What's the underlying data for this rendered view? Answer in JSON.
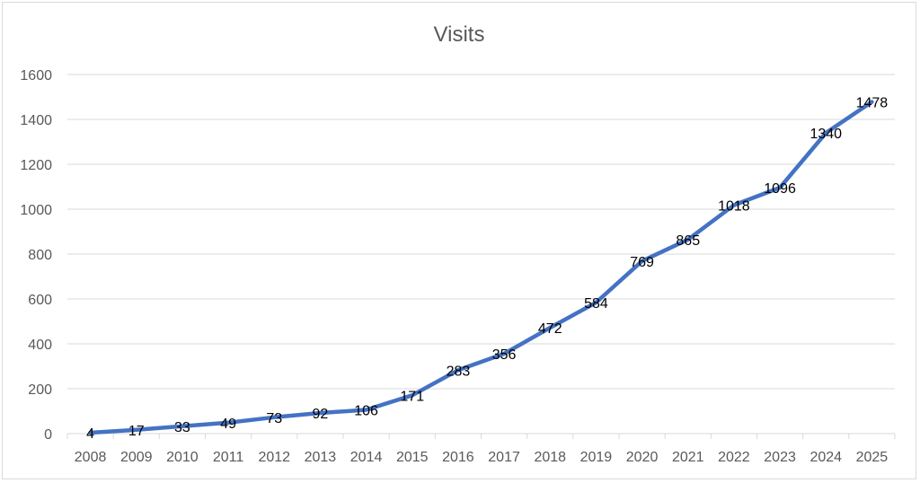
{
  "chart_data": {
    "type": "line",
    "title": "Visits",
    "xlabel": "",
    "ylabel": "",
    "categories": [
      "2008",
      "2009",
      "2010",
      "2011",
      "2012",
      "2013",
      "2014",
      "2015",
      "2016",
      "2017",
      "2018",
      "2019",
      "2020",
      "2021",
      "2022",
      "2023",
      "2024",
      "2025"
    ],
    "series": [
      {
        "values": [
          4,
          17,
          33,
          49,
          73,
          92,
          106,
          171,
          283,
          356,
          472,
          584,
          769,
          865,
          1018,
          1096,
          1340,
          1478
        ],
        "color": "#4472c4"
      }
    ],
    "ylim": [
      0,
      1600
    ],
    "yticks": [
      0,
      200,
      400,
      600,
      800,
      1000,
      1200,
      1400,
      1600
    ],
    "grid": true,
    "legend": "none",
    "data_labels": true
  }
}
